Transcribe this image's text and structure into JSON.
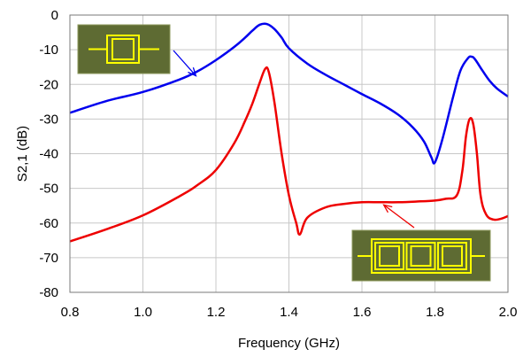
{
  "chart_data": {
    "type": "line",
    "title": "",
    "xlabel": "Frequency (GHz)",
    "ylabel": "S2,1 (dB)",
    "xlim": [
      0.8,
      2.0
    ],
    "ylim": [
      -80,
      0
    ],
    "xticks": [
      0.8,
      1.0,
      1.2,
      1.4,
      1.6,
      1.8,
      2.0
    ],
    "xtick_labels": [
      "0.8",
      "1.0",
      "1.2",
      "1.4",
      "1.6",
      "1.8",
      "2.0"
    ],
    "yticks": [
      0,
      -10,
      -20,
      -30,
      -40,
      -50,
      -60,
      -70,
      -80
    ],
    "ytick_labels": [
      "0",
      "-10",
      "-20",
      "-30",
      "-40",
      "-50",
      "-60",
      "-70",
      "-80"
    ],
    "grid": true,
    "legend": "none",
    "series": [
      {
        "color": "#0000ee",
        "x": [
          0.8,
          0.9,
          1.0,
          1.1,
          1.15,
          1.2,
          1.25,
          1.28,
          1.3,
          1.32,
          1.34,
          1.36,
          1.38,
          1.4,
          1.45,
          1.5,
          1.55,
          1.6,
          1.65,
          1.7,
          1.74,
          1.77,
          1.79,
          1.8,
          1.82,
          1.85,
          1.87,
          1.89,
          1.9,
          1.91,
          1.93,
          1.95,
          1.97,
          2.0
        ],
        "y": [
          -28.2,
          -24.8,
          -22.2,
          -18.6,
          -16.2,
          -13.0,
          -9.2,
          -6.5,
          -4.5,
          -2.8,
          -2.6,
          -4.0,
          -6.5,
          -9.6,
          -14.0,
          -17.2,
          -20.0,
          -22.8,
          -25.5,
          -28.8,
          -32.5,
          -36.5,
          -41.0,
          -42.5,
          -36.0,
          -23.5,
          -16.0,
          -12.5,
          -12.0,
          -12.8,
          -16.0,
          -19.0,
          -21.2,
          -23.5
        ]
      },
      {
        "color": "#ee0000",
        "x": [
          0.8,
          0.9,
          1.0,
          1.1,
          1.15,
          1.2,
          1.25,
          1.28,
          1.3,
          1.32,
          1.335,
          1.345,
          1.36,
          1.38,
          1.4,
          1.42,
          1.43,
          1.45,
          1.5,
          1.55,
          1.6,
          1.65,
          1.7,
          1.75,
          1.8,
          1.83,
          1.86,
          1.875,
          1.885,
          1.895,
          1.905,
          1.915,
          1.925,
          1.94,
          1.96,
          1.98,
          2.0
        ],
        "y": [
          -65.3,
          -61.8,
          -57.8,
          -52.3,
          -49.0,
          -44.7,
          -37.0,
          -30.5,
          -25.5,
          -19.5,
          -15.5,
          -16.5,
          -25.0,
          -40.0,
          -52.0,
          -60.0,
          -63.3,
          -58.5,
          -55.5,
          -54.5,
          -54.0,
          -54.0,
          -54.0,
          -53.8,
          -53.5,
          -53.0,
          -52.0,
          -45.0,
          -35.0,
          -30.0,
          -31.5,
          -40.0,
          -52.0,
          -57.5,
          -59.0,
          -58.8,
          -58.0
        ]
      }
    ],
    "annotations": [
      {
        "target_series": 0,
        "arrow_color": "#0000ee",
        "point": [
          1.15,
          -16.0
        ],
        "image": "single-resonator-layout"
      },
      {
        "target_series": 1,
        "arrow_color": "#ee0000",
        "point": [
          1.65,
          -54.0
        ],
        "image": "triple-resonator-layout"
      }
    ]
  }
}
